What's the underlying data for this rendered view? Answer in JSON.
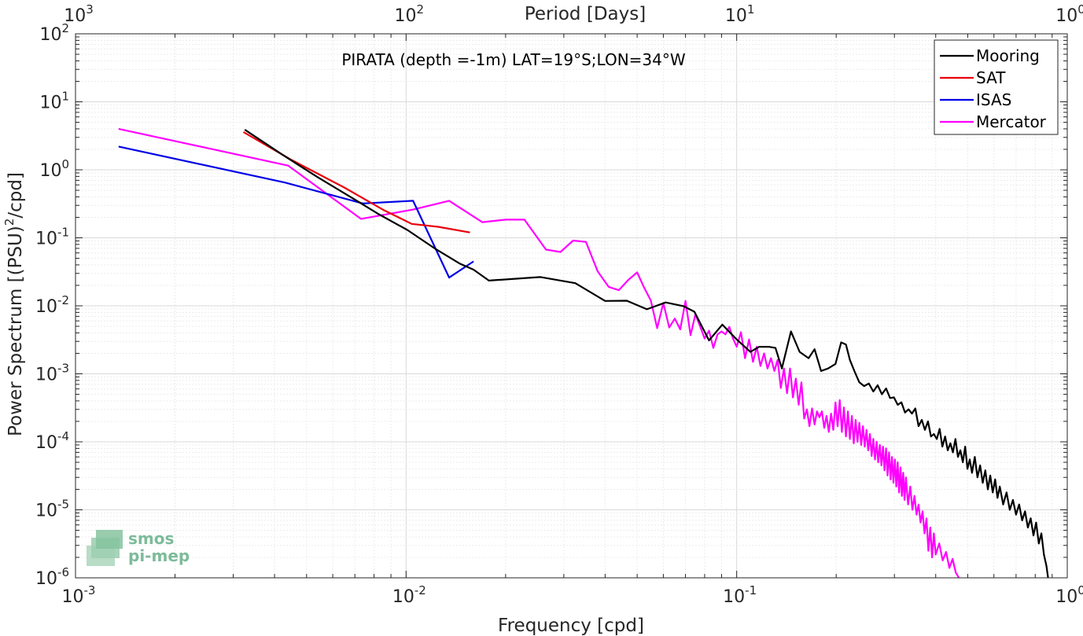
{
  "chart_data": {
    "type": "line",
    "title": "PIRATA (depth =-1m) LAT=19°S;LON=34°W",
    "xlabel": "Frequency [cpd]",
    "ylabel_pre": "Power Spectrum [(PSU)",
    "ylabel_sup": "2",
    "ylabel_post": "/cpd]",
    "top_xlabel": "Period [Days]",
    "xscale": "log",
    "yscale": "log",
    "xlim": [
      0.001,
      1
    ],
    "ylim": [
      1e-06,
      100
    ],
    "grid": true,
    "legend_position": "top-right",
    "x_ticks": [
      {
        "base": "10",
        "exp": "-3"
      },
      {
        "base": "10",
        "exp": "-2"
      },
      {
        "base": "10",
        "exp": "-1"
      },
      {
        "base": "10",
        "exp": "0"
      }
    ],
    "top_ticks": [
      {
        "base": "10",
        "exp": "3"
      },
      {
        "base": "10",
        "exp": "2"
      },
      {
        "base": "10",
        "exp": "1"
      },
      {
        "base": "10",
        "exp": "0"
      }
    ],
    "y_ticks": [
      {
        "base": "10",
        "exp": "2"
      },
      {
        "base": "10",
        "exp": "1"
      },
      {
        "base": "10",
        "exp": "0"
      },
      {
        "base": "10",
        "exp": "-1"
      },
      {
        "base": "10",
        "exp": "-2"
      },
      {
        "base": "10",
        "exp": "-3"
      },
      {
        "base": "10",
        "exp": "-4"
      },
      {
        "base": "10",
        "exp": "-5"
      },
      {
        "base": "10",
        "exp": "-6"
      }
    ],
    "logo": {
      "line1": "smos",
      "line2": "pi-mep"
    },
    "series": [
      {
        "name": "Mooring",
        "color": "#000000",
        "points": [
          [
            0.00325,
            3.9
          ],
          [
            0.0042,
            1.7
          ],
          [
            0.0054,
            0.78
          ],
          [
            0.0069,
            0.38
          ],
          [
            0.0083,
            0.22
          ],
          [
            0.0101,
            0.13
          ],
          [
            0.0122,
            0.07
          ],
          [
            0.0145,
            0.042
          ],
          [
            0.016,
            0.034
          ],
          [
            0.0178,
            0.0235
          ],
          [
            0.0255,
            0.0265
          ],
          [
            0.0325,
            0.0215
          ],
          [
            0.04,
            0.0118
          ],
          [
            0.0465,
            0.0119
          ],
          [
            0.0535,
            0.0089
          ],
          [
            0.061,
            0.0112
          ],
          [
            0.069,
            0.0099
          ],
          [
            0.0745,
            0.0082
          ],
          [
            0.0825,
            0.0031
          ],
          [
            0.0905,
            0.0053
          ],
          [
            0.1,
            0.0032
          ],
          [
            0.11,
            0.0021
          ],
          [
            0.117,
            0.0025
          ],
          [
            0.125,
            0.0025
          ],
          [
            0.131,
            0.0024
          ],
          [
            0.137,
            0.0012
          ],
          [
            0.146,
            0.0042
          ],
          [
            0.155,
            0.0021
          ],
          [
            0.165,
            0.0017
          ],
          [
            0.172,
            0.0023
          ],
          [
            0.18,
            0.0011
          ],
          [
            0.189,
            0.0012
          ],
          [
            0.199,
            0.0014
          ],
          [
            0.207,
            0.0029
          ],
          [
            0.214,
            0.0027
          ],
          [
            0.22,
            0.0016
          ],
          [
            0.227,
            0.0011
          ],
          [
            0.235,
            0.00075
          ],
          [
            0.243,
            0.00066
          ],
          [
            0.251,
            0.00072
          ],
          [
            0.259,
            0.00055
          ],
          [
            0.267,
            0.00068
          ],
          [
            0.275,
            0.0005
          ],
          [
            0.283,
            0.00061
          ],
          [
            0.291,
            0.00044
          ],
          [
            0.299,
            0.00045
          ],
          [
            0.307,
            0.00035
          ],
          [
            0.315,
            0.00038
          ],
          [
            0.323,
            0.00027
          ],
          [
            0.331,
            0.0003
          ],
          [
            0.339,
            0.00026
          ],
          [
            0.347,
            0.00031
          ],
          [
            0.355,
            0.00017
          ],
          [
            0.363,
            0.00021
          ],
          [
            0.371,
            0.00015
          ],
          [
            0.379,
            0.0002
          ],
          [
            0.387,
            0.00012
          ],
          [
            0.395,
            0.00013
          ],
          [
            0.403,
            0.00011
          ],
          [
            0.411,
            0.000155
          ],
          [
            0.419,
            8.5e-05
          ],
          [
            0.427,
            0.00012
          ],
          [
            0.435,
            7.5e-05
          ],
          [
            0.443,
            9.5e-05
          ],
          [
            0.451,
            7e-05
          ],
          [
            0.459,
            0.00011
          ],
          [
            0.467,
            6e-05
          ],
          [
            0.475,
            7.5e-05
          ],
          [
            0.483,
            5e-05
          ],
          [
            0.491,
            8.5e-05
          ],
          [
            0.499,
            4e-05
          ],
          [
            0.507,
            5.5e-05
          ],
          [
            0.515,
            3.5e-05
          ],
          [
            0.525,
            6e-05
          ],
          [
            0.535,
            3e-05
          ],
          [
            0.545,
            4.5e-05
          ],
          [
            0.555,
            2.5e-05
          ],
          [
            0.565,
            3.8e-05
          ],
          [
            0.575,
            2e-05
          ],
          [
            0.585,
            3.2e-05
          ],
          [
            0.595,
            1.8e-05
          ],
          [
            0.605,
            2.8e-05
          ],
          [
            0.615,
            1.5e-05
          ],
          [
            0.625,
            2.2e-05
          ],
          [
            0.64,
            1.2e-05
          ],
          [
            0.655,
            1.8e-05
          ],
          [
            0.67,
            1e-05
          ],
          [
            0.685,
            1.4e-05
          ],
          [
            0.7,
            8.5e-06
          ],
          [
            0.715,
            1.2e-05
          ],
          [
            0.73,
            7e-06
          ],
          [
            0.745,
            9.5e-06
          ],
          [
            0.76,
            5.5e-06
          ],
          [
            0.775,
            7.5e-06
          ],
          [
            0.79,
            4.2e-06
          ],
          [
            0.805,
            6.5e-06
          ],
          [
            0.82,
            3.2e-06
          ],
          [
            0.835,
            4.5e-06
          ],
          [
            0.85,
            2.2e-06
          ],
          [
            0.865,
            1.5e-06
          ],
          [
            0.875,
            1e-06
          ]
        ]
      },
      {
        "name": "SAT",
        "color": "#e8000b",
        "points": [
          [
            0.00322,
            3.6
          ],
          [
            0.0045,
            1.4
          ],
          [
            0.0065,
            0.55
          ],
          [
            0.0085,
            0.26
          ],
          [
            0.0104,
            0.16
          ],
          [
            0.0125,
            0.145
          ],
          [
            0.0156,
            0.12
          ]
        ]
      },
      {
        "name": "ISAS",
        "color": "#0000e6",
        "points": [
          [
            0.00135,
            2.2
          ],
          [
            0.0043,
            0.65
          ],
          [
            0.0074,
            0.32
          ],
          [
            0.0105,
            0.35
          ],
          [
            0.0135,
            0.026
          ],
          [
            0.016,
            0.045
          ]
        ]
      },
      {
        "name": "Mercator",
        "color": "#ff00ff",
        "points": [
          [
            0.00135,
            4.0
          ],
          [
            0.0044,
            1.15
          ],
          [
            0.0073,
            0.19
          ],
          [
            0.0105,
            0.26
          ],
          [
            0.0135,
            0.35
          ],
          [
            0.017,
            0.17
          ],
          [
            0.02,
            0.185
          ],
          [
            0.0228,
            0.185
          ],
          [
            0.0265,
            0.067
          ],
          [
            0.0293,
            0.062
          ],
          [
            0.032,
            0.091
          ],
          [
            0.035,
            0.087
          ],
          [
            0.038,
            0.032
          ],
          [
            0.041,
            0.019
          ],
          [
            0.044,
            0.017
          ],
          [
            0.047,
            0.024
          ],
          [
            0.05,
            0.031
          ],
          [
            0.0525,
            0.0185
          ],
          [
            0.055,
            0.012
          ],
          [
            0.0575,
            0.0047
          ],
          [
            0.06,
            0.011
          ],
          [
            0.0625,
            0.0048
          ],
          [
            0.065,
            0.0065
          ],
          [
            0.0675,
            0.0045
          ],
          [
            0.07,
            0.0118
          ],
          [
            0.0725,
            0.0037
          ],
          [
            0.075,
            0.0075
          ],
          [
            0.0775,
            0.005
          ],
          [
            0.08,
            0.0033
          ],
          [
            0.0825,
            0.0043
          ],
          [
            0.085,
            0.0024
          ],
          [
            0.0875,
            0.0038
          ],
          [
            0.09,
            0.0042
          ],
          [
            0.0925,
            0.0038
          ],
          [
            0.095,
            0.0049
          ],
          [
            0.0975,
            0.0033
          ],
          [
            0.1,
            0.0025
          ],
          [
            0.103,
            0.0041
          ],
          [
            0.106,
            0.0017
          ],
          [
            0.109,
            0.0032
          ],
          [
            0.112,
            0.0015
          ],
          [
            0.115,
            0.0025
          ],
          [
            0.118,
            0.0013
          ],
          [
            0.121,
            0.002
          ],
          [
            0.124,
            0.0012
          ],
          [
            0.127,
            0.0017
          ],
          [
            0.13,
            0.0011
          ],
          [
            0.133,
            0.0016
          ],
          [
            0.136,
            0.00062
          ],
          [
            0.139,
            0.0012
          ],
          [
            0.142,
            0.00052
          ],
          [
            0.145,
            0.0012
          ],
          [
            0.148,
            0.00045
          ],
          [
            0.151,
            0.00085
          ],
          [
            0.154,
            0.00035
          ],
          [
            0.157,
            0.00075
          ],
          [
            0.16,
            0.00022
          ],
          [
            0.163,
            0.0003
          ],
          [
            0.166,
            0.00017
          ],
          [
            0.169,
            0.00031
          ],
          [
            0.172,
            0.00018
          ],
          [
            0.175,
            0.00028
          ],
          [
            0.178,
            0.00023
          ],
          [
            0.181,
            0.00028
          ],
          [
            0.184,
            0.00016
          ],
          [
            0.187,
            0.00024
          ],
          [
            0.19,
            0.00014
          ],
          [
            0.193,
            0.00026
          ],
          [
            0.196,
            0.00015
          ],
          [
            0.199,
            0.00038
          ],
          [
            0.202,
            0.00017
          ],
          [
            0.205,
            0.00041
          ],
          [
            0.208,
            0.00014
          ],
          [
            0.211,
            0.00032
          ],
          [
            0.214,
            0.00012
          ],
          [
            0.217,
            0.00028
          ],
          [
            0.22,
            0.00011
          ],
          [
            0.223,
            0.00024
          ],
          [
            0.226,
            9.5e-05
          ],
          [
            0.229,
            0.00021
          ],
          [
            0.232,
            0.0001
          ],
          [
            0.235,
            0.00019
          ],
          [
            0.238,
            9e-05
          ],
          [
            0.241,
            0.00017
          ],
          [
            0.244,
            8.5e-05
          ],
          [
            0.247,
            0.00015
          ],
          [
            0.25,
            7.5e-05
          ],
          [
            0.253,
            0.00013
          ],
          [
            0.256,
            6.2e-05
          ],
          [
            0.259,
            0.00011
          ],
          [
            0.262,
            5.5e-05
          ],
          [
            0.265,
            0.0001
          ],
          [
            0.268,
            5e-05
          ],
          [
            0.271,
            9e-05
          ],
          [
            0.274,
            4.5e-05
          ],
          [
            0.277,
            8.5e-05
          ],
          [
            0.28,
            3.8e-05
          ],
          [
            0.283,
            8e-05
          ],
          [
            0.286,
            3.2e-05
          ],
          [
            0.289,
            7e-05
          ],
          [
            0.292,
            2.8e-05
          ],
          [
            0.295,
            6e-05
          ],
          [
            0.298,
            2.5e-05
          ],
          [
            0.301,
            5.5e-05
          ],
          [
            0.304,
            2.2e-05
          ],
          [
            0.307,
            5e-05
          ],
          [
            0.31,
            1.8e-05
          ],
          [
            0.313,
            4.2e-05
          ],
          [
            0.316,
            1.6e-05
          ],
          [
            0.319,
            3.5e-05
          ],
          [
            0.322,
            1.4e-05
          ],
          [
            0.325,
            3e-05
          ],
          [
            0.33,
            1.2e-05
          ],
          [
            0.335,
            2.2e-05
          ],
          [
            0.34,
            1e-05
          ],
          [
            0.345,
            1.6e-05
          ],
          [
            0.35,
            8.5e-06
          ],
          [
            0.355,
            1.2e-05
          ],
          [
            0.36,
            6.5e-06
          ],
          [
            0.365,
            9.5e-06
          ],
          [
            0.37,
            4.5e-06
          ],
          [
            0.375,
            7.5e-06
          ],
          [
            0.38,
            2.5e-06
          ],
          [
            0.385,
            5.5e-06
          ],
          [
            0.39,
            2e-06
          ],
          [
            0.395,
            4.5e-06
          ],
          [
            0.4,
            2.2e-06
          ],
          [
            0.41,
            3.2e-06
          ],
          [
            0.42,
            1.8e-06
          ],
          [
            0.43,
            2.4e-06
          ],
          [
            0.44,
            1.4e-06
          ],
          [
            0.45,
            1.9e-06
          ],
          [
            0.46,
            1.2e-06
          ],
          [
            0.47,
            1e-06
          ]
        ]
      }
    ]
  }
}
